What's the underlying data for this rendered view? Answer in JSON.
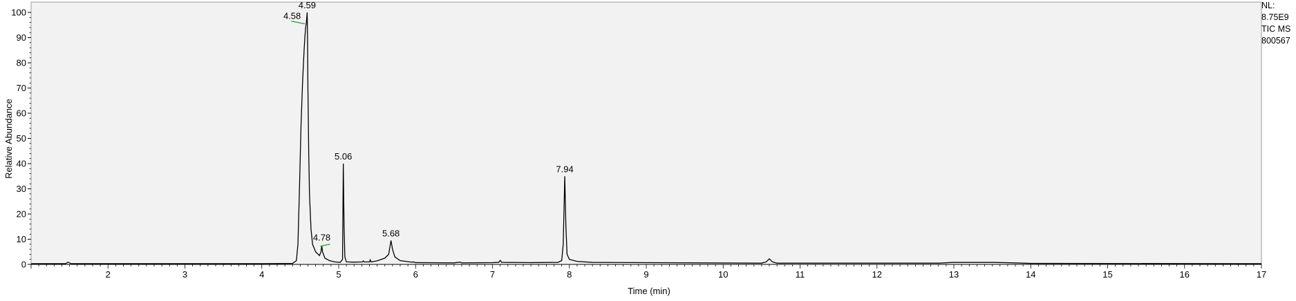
{
  "info": {
    "nl_label": "NL:",
    "nl_value": "8.75E9",
    "scan_filter": "TIC  MS",
    "sample_id": "800567"
  },
  "chart_data": {
    "type": "line",
    "title": "",
    "xlabel": "Time (min)",
    "ylabel": "Relative Abundance",
    "xlim": [
      1,
      17
    ],
    "ylim": [
      0,
      100
    ],
    "xticks": [
      2,
      3,
      4,
      5,
      6,
      7,
      8,
      9,
      10,
      11,
      12,
      13,
      14,
      15,
      16,
      17
    ],
    "yticks": [
      0,
      10,
      20,
      30,
      40,
      50,
      60,
      70,
      80,
      90,
      100
    ],
    "grid": false,
    "colors": {
      "plot_background": "#f2f2f2",
      "trace": "#000000",
      "integration_marker": "#2a9d2a"
    },
    "peak_labels": [
      {
        "label": "4.59",
        "x": 4.59,
        "y": 100
      },
      {
        "label": "4.58",
        "x": 4.58,
        "y": 96
      },
      {
        "label": "4.78",
        "x": 4.78,
        "y": 7.5
      },
      {
        "label": "5.06",
        "x": 5.06,
        "y": 40
      },
      {
        "label": "5.68",
        "x": 5.68,
        "y": 9.5
      },
      {
        "label": "7.94",
        "x": 7.94,
        "y": 35
      }
    ],
    "series": [
      {
        "x": [
          1.0,
          1.45,
          1.48,
          1.52,
          4.0,
          4.4,
          4.45,
          4.47,
          4.49,
          4.51,
          4.53,
          4.55,
          4.56,
          4.57,
          4.58,
          4.585,
          4.59,
          4.595,
          4.6,
          4.61,
          4.62,
          4.64,
          4.66,
          4.7,
          4.75,
          4.77,
          4.78,
          4.79,
          4.82,
          4.88,
          4.95,
          5.02,
          5.05,
          5.06,
          5.07,
          5.08,
          5.1,
          5.2,
          5.31,
          5.32,
          5.33,
          5.4,
          5.41,
          5.42,
          5.5,
          5.6,
          5.65,
          5.68,
          5.7,
          5.73,
          5.8,
          5.95,
          5.97,
          6.0,
          6.5,
          6.58,
          6.6,
          7.0,
          7.08,
          7.1,
          7.12,
          7.5,
          7.85,
          7.9,
          7.92,
          7.94,
          7.955,
          7.97,
          8.0,
          8.1,
          8.3,
          10.5,
          10.56,
          10.6,
          10.64,
          10.7,
          12.8,
          13.0,
          13.5,
          13.8,
          14.0,
          17.0
        ],
        "y": [
          0.3,
          0.3,
          0.9,
          0.3,
          0.3,
          0.4,
          1.5,
          8,
          30,
          55,
          72,
          85,
          90,
          94,
          96,
          98,
          100,
          90,
          70,
          45,
          28,
          14,
          8,
          5,
          3.5,
          5,
          7.5,
          5,
          2.5,
          1.5,
          1.0,
          0.8,
          2,
          40,
          15,
          3,
          1.0,
          0.9,
          1.0,
          1.4,
          1.0,
          1.0,
          1.8,
          1.0,
          1.4,
          2.5,
          4,
          9.5,
          6,
          3,
          1.5,
          0.9,
          1.0,
          0.7,
          0.6,
          0.9,
          0.6,
          0.7,
          0.8,
          1.6,
          0.8,
          0.7,
          0.8,
          1.5,
          8,
          35,
          15,
          4,
          2,
          1.2,
          0.8,
          0.5,
          1.0,
          2.2,
          1.0,
          0.5,
          0.5,
          0.8,
          0.8,
          0.6,
          0.4,
          0.3
        ]
      }
    ]
  }
}
